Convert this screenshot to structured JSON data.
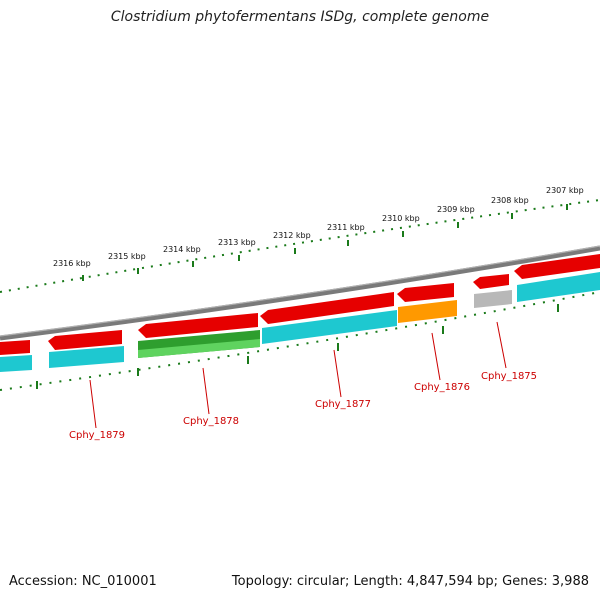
{
  "title": "Clostridium phytofermentans ISDg, complete genome",
  "footer": {
    "accession": "Accession: NC_010001",
    "summary": "Topology: circular; Length: 4,847,594 bp; Genes: 3,988"
  },
  "scale": {
    "unit": "kbp",
    "ticks": [
      "2316 kbp",
      "2315 kbp",
      "2314 kbp",
      "2313 kbp",
      "2312 kbp",
      "2311 kbp",
      "2310 kbp",
      "2309 kbp",
      "2308 kbp",
      "2307 kbp"
    ]
  },
  "gene_labels": [
    "Cphy_1879",
    "Cphy_1878",
    "Cphy_1877",
    "Cphy_1876",
    "Cphy_1875"
  ],
  "colors": {
    "backbone": "#7a7a7a",
    "cds_strand": "#e60000",
    "cyan_track": "#1ec8d0",
    "green_feature": "#2e9e2e",
    "orange_feature": "#ff9900",
    "gray_feature": "#b8b8b8",
    "scale_ticks": "#1a7a1a",
    "gene_label": "#cc0000"
  }
}
